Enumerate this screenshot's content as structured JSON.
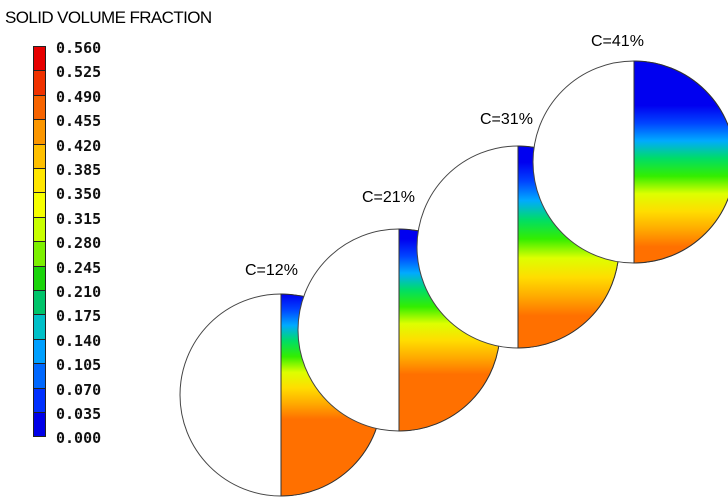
{
  "legend": {
    "title": "SOLID VOLUME FRACTION",
    "ticks": [
      "0.560",
      "0.525",
      "0.490",
      "0.455",
      "0.420",
      "0.385",
      "0.350",
      "0.315",
      "0.280",
      "0.245",
      "0.210",
      "0.175",
      "0.140",
      "0.105",
      "0.070",
      "0.035",
      "0.000"
    ],
    "cell_colors": [
      "#e60000",
      "#f03200",
      "#f76400",
      "#fb9600",
      "#ffc000",
      "#ffe600",
      "#f6ff00",
      "#c8ff00",
      "#7cf000",
      "#1ad40a",
      "#00c46a",
      "#00c0c8",
      "#00a0ff",
      "#0068ff",
      "#0030ff",
      "#0000e8"
    ]
  },
  "colors": {
    "stops": [
      "#0000f0",
      "#0044ff",
      "#00aaff",
      "#00dd66",
      "#33ee00",
      "#ddff00",
      "#ffdd00",
      "#ffaa00",
      "#ff7000"
    ]
  },
  "cases": [
    {
      "label": "C=12%",
      "fill_start": 0.0,
      "fill_end": 0.62
    },
    {
      "label": "C=21%",
      "fill_start": 0.05,
      "fill_end": 0.72
    },
    {
      "label": "C=31%",
      "fill_start": 0.08,
      "fill_end": 0.84
    },
    {
      "label": "C=41%",
      "fill_start": 0.22,
      "fill_end": 0.92
    }
  ]
}
